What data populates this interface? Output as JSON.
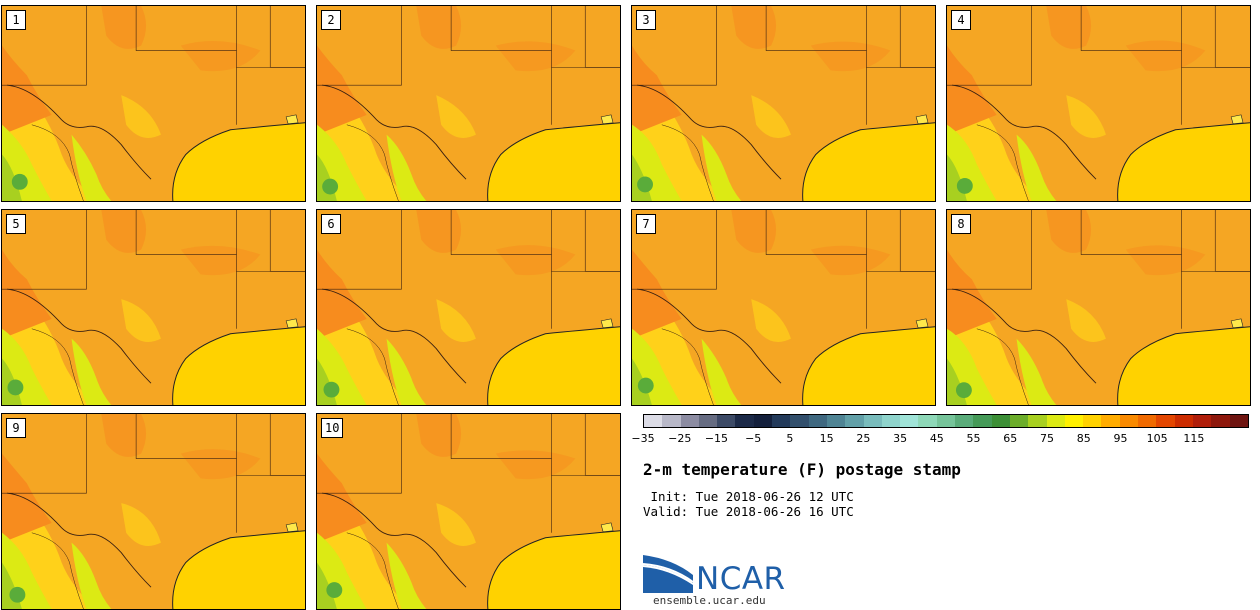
{
  "panels": [
    "1",
    "2",
    "3",
    "4",
    "5",
    "6",
    "7",
    "8",
    "9",
    "10"
  ],
  "colorbar": {
    "colors": [
      "#dcdce6",
      "#b8b8c8",
      "#8c8ca2",
      "#666c82",
      "#3c4a66",
      "#1c2a48",
      "#14203c",
      "#233a5a",
      "#324f6c",
      "#3f6880",
      "#4f8494",
      "#62a0a8",
      "#79bcbc",
      "#8fd4cc",
      "#a0e4d8",
      "#8ed8b8",
      "#76c49a",
      "#5aac7a",
      "#459a58",
      "#3c8f36",
      "#6cad2a",
      "#a8d020",
      "#dcea14",
      "#fff000",
      "#ffd200",
      "#ffac00",
      "#f98a00",
      "#f06a00",
      "#e34600",
      "#cc2c00",
      "#b01e0a",
      "#8e180c",
      "#6e1410"
    ],
    "ticks": [
      "−35",
      "−25",
      "−15",
      "−5",
      "5",
      "15",
      "25",
      "35",
      "45",
      "55",
      "65",
      "75",
      "85",
      "95",
      "105",
      "115"
    ]
  },
  "title": "2-m temperature (F) postage stamp",
  "init": " Init: Tue 2018-06-26 12 UTC",
  "valid": "Valid: Tue 2018-06-26 16 UTC",
  "logo": {
    "text": "NCAR",
    "url": "ensemble.ucar.edu"
  },
  "map_colors": {
    "base": "#f5a623",
    "warm": "#f78c1e",
    "mild": "#ffd11a",
    "cool": "#dcea14",
    "cooler": "#a8d020",
    "green": "#5aac3a",
    "gulf": "#ffd200"
  }
}
